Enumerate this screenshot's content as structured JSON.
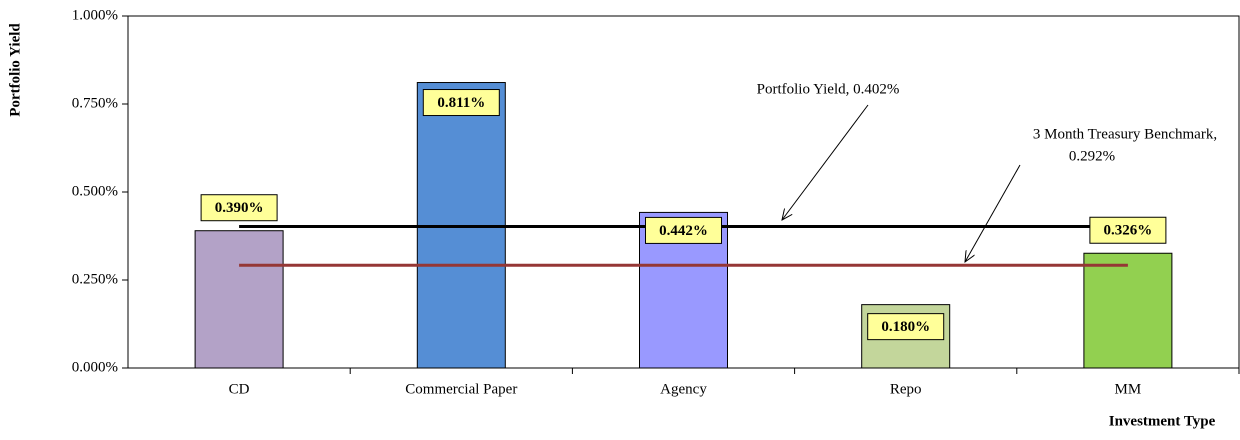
{
  "chart_data": {
    "type": "bar",
    "y_axis_label": "Portfolio Yield",
    "x_axis_label": "Investment Type",
    "categories": [
      "CD",
      "Commercial Paper",
      "Agency",
      "Repo",
      "MM"
    ],
    "values": [
      0.39,
      0.811,
      0.442,
      0.18,
      0.326
    ],
    "value_labels": [
      "0.390%",
      "0.811%",
      "0.442%",
      "0.180%",
      "0.326%"
    ],
    "colors": [
      "#b3a2c7",
      "#558ed5",
      "#9999ff",
      "#c3d69b",
      "#92d050"
    ],
    "ylim": [
      0,
      1
    ],
    "yticks": [
      {
        "value": 0,
        "label": "0.000%"
      },
      {
        "value": 0.25,
        "label": "0.250%"
      },
      {
        "value": 0.5,
        "label": "0.500%"
      },
      {
        "value": 0.75,
        "label": "0.750%"
      },
      {
        "value": 1,
        "label": "1.000%"
      }
    ],
    "reference_lines": [
      {
        "value": 0.402,
        "color": "#000000",
        "label_lines": [
          "Portfolio Yield, 0.402%"
        ]
      },
      {
        "value": 0.292,
        "color": "#953735",
        "label_lines": [
          "3 Month Treasury Benchmark,",
          "0.292%"
        ]
      }
    ]
  }
}
